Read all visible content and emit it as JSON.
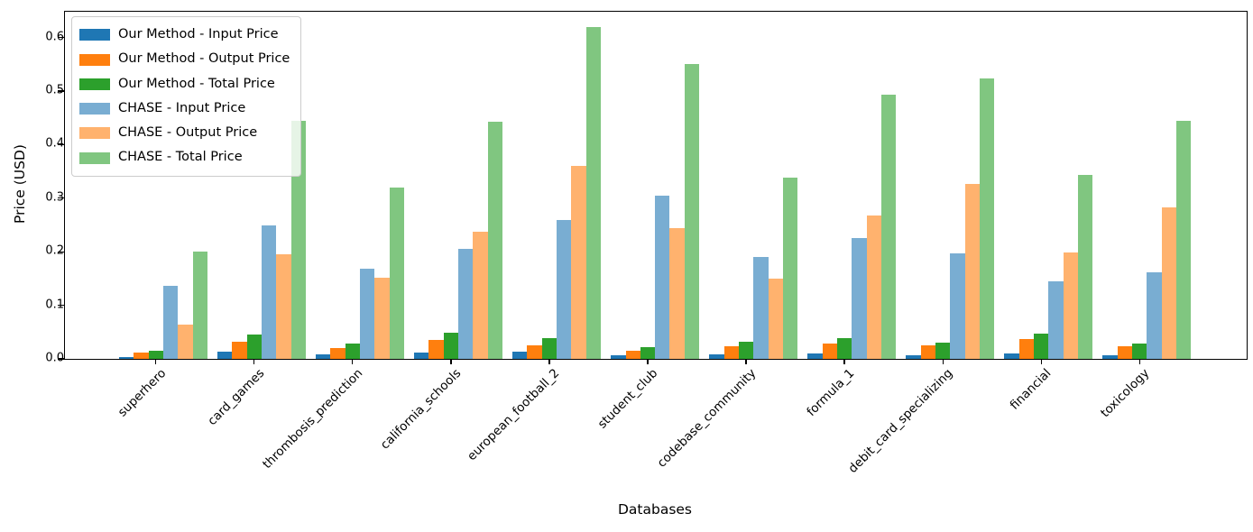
{
  "chart_data": {
    "type": "bar",
    "title": "",
    "xlabel": "Databases",
    "ylabel": "Price (USD)",
    "categories": [
      "superhero",
      "card_games",
      "thrombosis_prediction",
      "california_schools",
      "european_football_2",
      "student_club",
      "codebase_community",
      "formula_1",
      "debit_card_specializing",
      "financial",
      "toxicology"
    ],
    "series": [
      {
        "name": "Our Method - Input Price",
        "color": "#1f77b4",
        "values": [
          0.004,
          0.013,
          0.008,
          0.012,
          0.014,
          0.006,
          0.008,
          0.01,
          0.006,
          0.01,
          0.006
        ]
      },
      {
        "name": "Our Method - Output Price",
        "color": "#ff7f0e",
        "values": [
          0.011,
          0.032,
          0.02,
          0.036,
          0.025,
          0.016,
          0.024,
          0.028,
          0.025,
          0.037,
          0.023
        ]
      },
      {
        "name": "Our Method - Total Price",
        "color": "#2ca02c",
        "values": [
          0.015,
          0.045,
          0.028,
          0.048,
          0.039,
          0.022,
          0.032,
          0.038,
          0.031,
          0.047,
          0.029
        ]
      },
      {
        "name": "CHASE - Input Price",
        "color": "rgba(31,119,180,0.6)",
        "values": [
          0.136,
          0.249,
          0.168,
          0.205,
          0.259,
          0.305,
          0.19,
          0.225,
          0.197,
          0.144,
          0.161
        ]
      },
      {
        "name": "CHASE - Output Price",
        "color": "rgba(255,127,14,0.6)",
        "values": [
          0.064,
          0.196,
          0.151,
          0.237,
          0.36,
          0.244,
          0.15,
          0.267,
          0.326,
          0.198,
          0.283
        ]
      },
      {
        "name": "CHASE - Total Price",
        "color": "rgba(44,160,44,0.6)",
        "values": [
          0.2,
          0.445,
          0.319,
          0.442,
          0.62,
          0.55,
          0.339,
          0.493,
          0.523,
          0.343,
          0.444
        ]
      }
    ],
    "yticks": [
      0.0,
      0.1,
      0.2,
      0.3,
      0.4,
      0.5,
      0.6
    ],
    "ylim": [
      0,
      0.648
    ],
    "grid": false,
    "legend_position": "upper left"
  }
}
